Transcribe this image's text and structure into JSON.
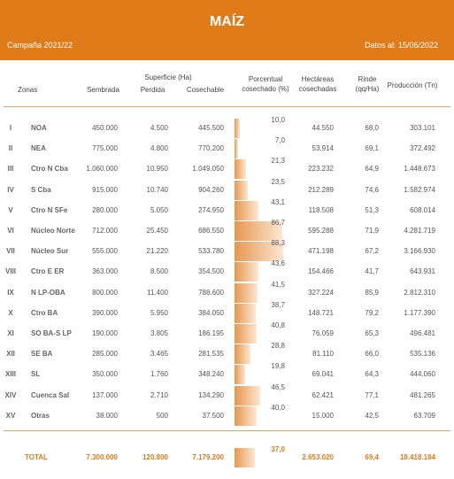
{
  "header": {
    "title": "MAÍZ",
    "campaign": "Campaña 2021/22",
    "date": "Datos al: 15/06/2022"
  },
  "table": {
    "group_header": "Superficie (Ha)",
    "columns": [
      "Zonas",
      "Sembrada",
      "Perdida",
      "Cosechable",
      "Porcentual cosechado (%)",
      "Hectáreas cosechadas",
      "Rinde (qq/Ha)",
      "Producción (Tn)"
    ],
    "rows": [
      [
        "I",
        "NOA",
        "450.000",
        "4.500",
        "445.500",
        "10,0",
        "44.550",
        "68,0",
        "303.101"
      ],
      [
        "II",
        "NEA",
        "775.000",
        "4.800",
        "770.200",
        "7,0",
        "53.914",
        "69,1",
        "372.492"
      ],
      [
        "III",
        "Ctro N Cba",
        "1.060.000",
        "10.950",
        "1.049.050",
        "21,3",
        "223.232",
        "64,9",
        "1.448.673"
      ],
      [
        "IV",
        "S Cba",
        "915.000",
        "10.740",
        "904.260",
        "23,5",
        "212.289",
        "74,6",
        "1.582.974"
      ],
      [
        "V",
        "Ctro N SFe",
        "280.000",
        "5.050",
        "274.950",
        "43,1",
        "118.508",
        "51,3",
        "608.014"
      ],
      [
        "VI",
        "Núcleo Norte",
        "712.000",
        "25.450",
        "686.550",
        "86,7",
        "595.288",
        "71,9",
        "4.281.719"
      ],
      [
        "VII",
        "Núcleo Sur",
        "555.000",
        "21.220",
        "533.780",
        "88,3",
        "471.198",
        "67,2",
        "3.166.930"
      ],
      [
        "VIII",
        "Ctro E ER",
        "363.000",
        "8.500",
        "354.500",
        "43,6",
        "154.466",
        "41,7",
        "643.931"
      ],
      [
        "IX",
        "N LP-OBA",
        "800.000",
        "11.400",
        "788.600",
        "41,5",
        "327.224",
        "85,9",
        "2.812.310"
      ],
      [
        "X",
        "Ctro BA",
        "390.000",
        "5.950",
        "384.050",
        "38,7",
        "148.721",
        "79,2",
        "1.177.390"
      ],
      [
        "XI",
        "SO BA-S LP",
        "190.000",
        "3.805",
        "186.195",
        "40,8",
        "76.059",
        "65,3",
        "496.481"
      ],
      [
        "XII",
        "SE BA",
        "285.000",
        "3.465",
        "281.535",
        "28,8",
        "81.110",
        "66,0",
        "535.136"
      ],
      [
        "XIII",
        "SL",
        "350.000",
        "1.760",
        "348.240",
        "19,8",
        "69.041",
        "64,3",
        "444.060"
      ],
      [
        "XIV",
        "Cuenca Sal",
        "137.000",
        "2.710",
        "134.290",
        "46,5",
        "62.421",
        "77,1",
        "481.265"
      ],
      [
        "XV",
        "Otras",
        "38.000",
        "500",
        "37.500",
        "40,0",
        "15.000",
        "42,5",
        "63.709"
      ]
    ],
    "total": [
      "TOTAL",
      "7.300.000",
      "120.800",
      "7.179.200",
      "37,0",
      "2.653.020",
      "69,4",
      "18.418.184"
    ]
  }
}
